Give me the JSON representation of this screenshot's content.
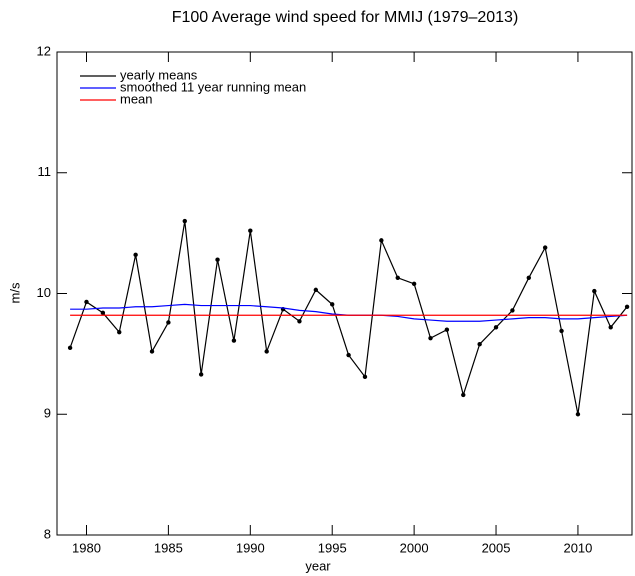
{
  "chart_data": {
    "type": "line",
    "title": "F100 Average wind speed for MMIJ (1979–2013)",
    "x_label": "year",
    "y_label": "m/s",
    "x": [
      1979,
      1980,
      1981,
      1982,
      1983,
      1984,
      1985,
      1986,
      1987,
      1988,
      1989,
      1990,
      1991,
      1992,
      1993,
      1994,
      1995,
      1996,
      1997,
      1998,
      1999,
      2000,
      2001,
      2002,
      2003,
      2004,
      2005,
      2006,
      2007,
      2008,
      2009,
      2010,
      2011,
      2012,
      2013
    ],
    "series": [
      {
        "name": "yearly means",
        "color": "#000000",
        "markers": true,
        "values": [
          9.55,
          9.93,
          9.84,
          9.68,
          10.32,
          9.52,
          9.76,
          10.6,
          9.33,
          10.28,
          9.61,
          10.52,
          9.52,
          9.87,
          9.77,
          10.03,
          9.91,
          9.49,
          9.31,
          10.44,
          10.13,
          10.08,
          9.63,
          9.7,
          9.16,
          9.58,
          9.72,
          9.86,
          10.13,
          10.38,
          9.69,
          9.0,
          10.02,
          9.72,
          9.89
        ]
      },
      {
        "name": "smoothed 11 year running mean",
        "color": "#0000ff",
        "markers": false,
        "values": [
          9.87,
          9.87,
          9.88,
          9.88,
          9.89,
          9.89,
          9.9,
          9.91,
          9.9,
          9.9,
          9.9,
          9.9,
          9.89,
          9.88,
          9.86,
          9.85,
          9.83,
          9.82,
          9.82,
          9.82,
          9.81,
          9.79,
          9.78,
          9.77,
          9.77,
          9.77,
          9.78,
          9.79,
          9.8,
          9.8,
          9.79,
          9.79,
          9.8,
          9.81,
          9.82
        ]
      },
      {
        "name": "mean",
        "color": "#ff0000",
        "markers": false,
        "values": [
          9.82,
          9.82,
          9.82,
          9.82,
          9.82,
          9.82,
          9.82,
          9.82,
          9.82,
          9.82,
          9.82,
          9.82,
          9.82,
          9.82,
          9.82,
          9.82,
          9.82,
          9.82,
          9.82,
          9.82,
          9.82,
          9.82,
          9.82,
          9.82,
          9.82,
          9.82,
          9.82,
          9.82,
          9.82,
          9.82,
          9.82,
          9.82,
          9.82,
          9.82,
          9.82
        ]
      }
    ],
    "xlim": [
      1978.2,
      2013.3
    ],
    "ylim": [
      8,
      12
    ],
    "xticks": [
      1980,
      1985,
      1990,
      1995,
      2000,
      2005,
      2010
    ],
    "yticks": [
      8,
      9,
      10,
      11,
      12
    ],
    "legend": "upper left"
  }
}
